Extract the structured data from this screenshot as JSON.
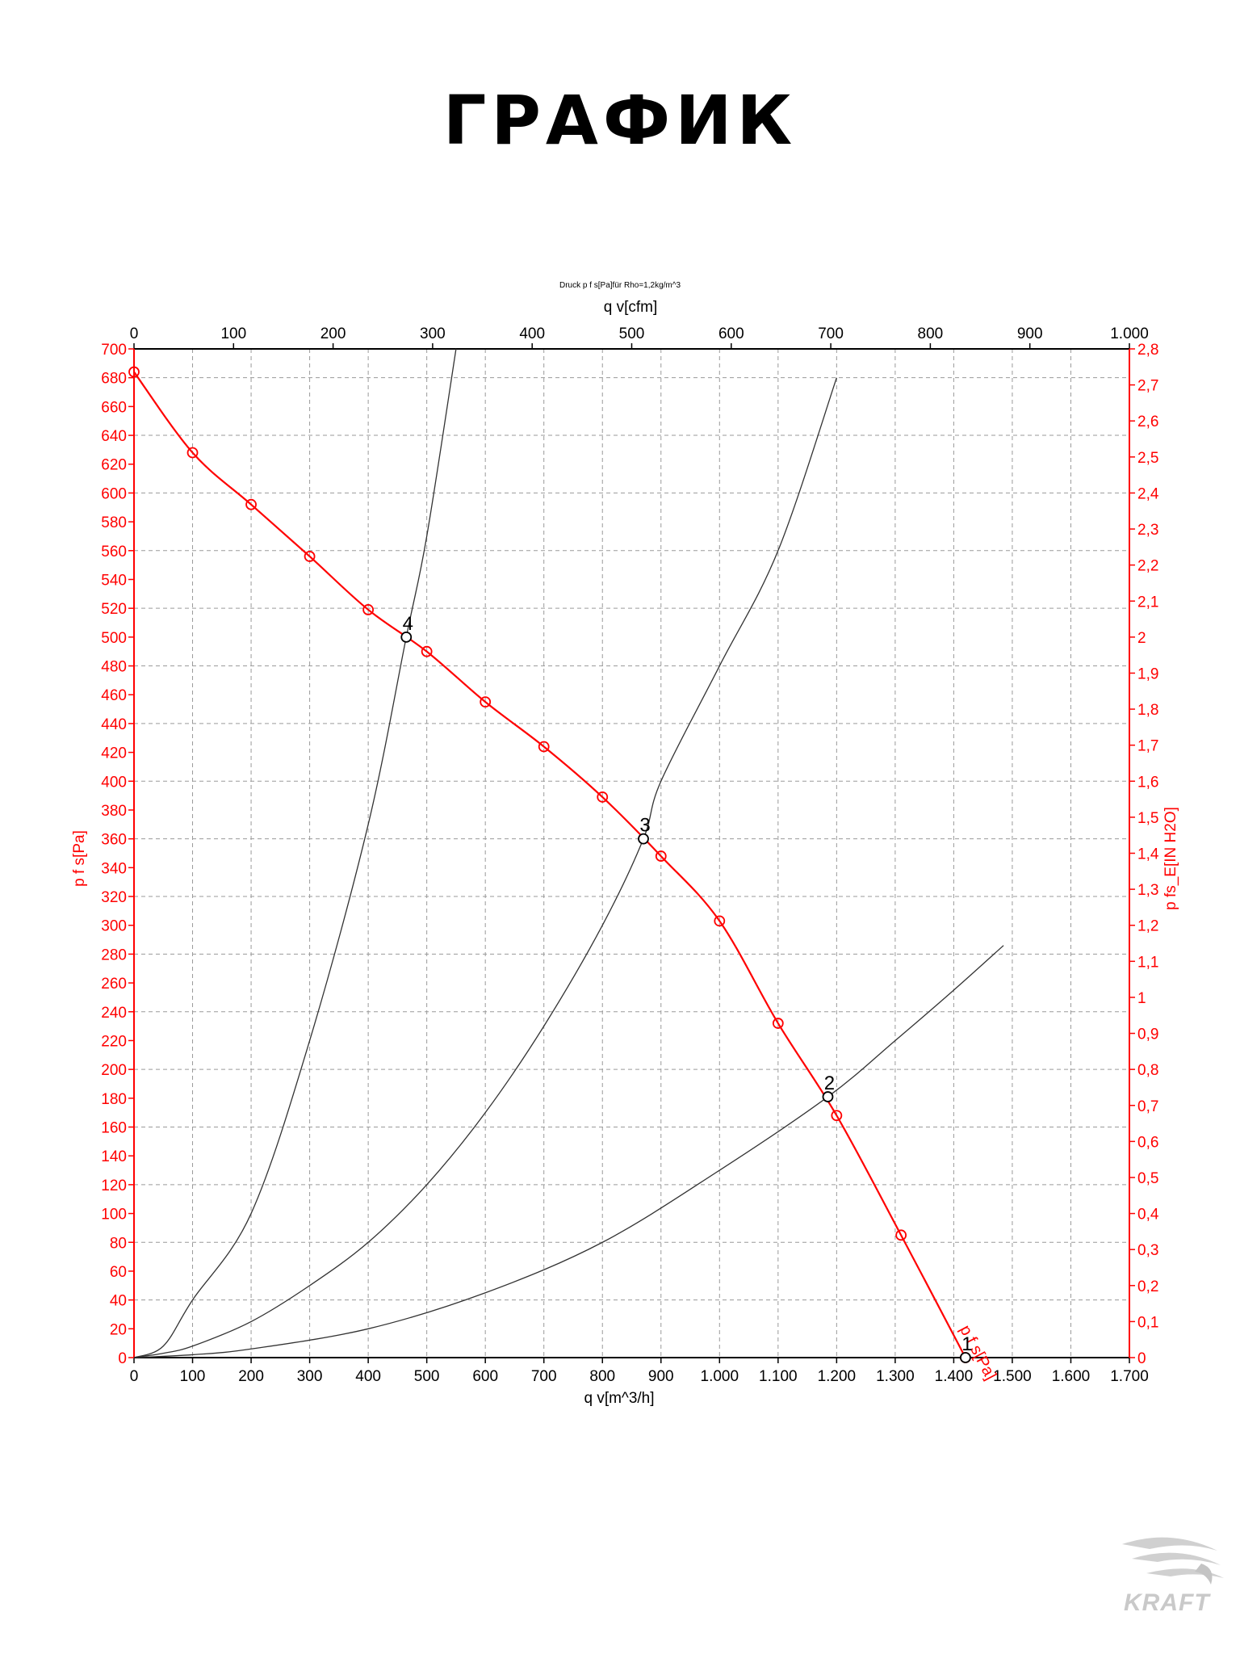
{
  "page": {
    "title": "ГРАФИК"
  },
  "logo": {
    "text": "KRAFT"
  },
  "chart_data": {
    "type": "line",
    "title": "Druck p f s[Pa]für Rho=1,2kg/m^3",
    "xlabel": "q v[m^3/h]",
    "x2label": "q v[cfm]",
    "ylabel": "p f s[Pa]",
    "y2label": "p fs_E[IN H2O]",
    "xlim": [
      0,
      1700
    ],
    "ylim": [
      0,
      700
    ],
    "x2lim": [
      0,
      1000
    ],
    "y2lim": [
      0,
      2.8
    ],
    "grid": true,
    "x_ticks": [
      0,
      100,
      200,
      300,
      400,
      500,
      600,
      700,
      800,
      900,
      1000,
      1100,
      1200,
      1300,
      1400,
      1500,
      1600,
      1700
    ],
    "x_tick_labels": [
      "0",
      "100",
      "200",
      "300",
      "400",
      "500",
      "600",
      "700",
      "800",
      "900",
      "1.000",
      "1.100",
      "1.200",
      "1.300",
      "1.400",
      "1.500",
      "1.600",
      "1.700"
    ],
    "x2_ticks": [
      0,
      100,
      200,
      300,
      400,
      500,
      600,
      700,
      800,
      900,
      1000
    ],
    "x2_tick_labels": [
      "0",
      "100",
      "200",
      "300",
      "400",
      "500",
      "600",
      "700",
      "800",
      "900",
      "1.000"
    ],
    "y_ticks": [
      0,
      20,
      40,
      60,
      80,
      100,
      120,
      140,
      160,
      180,
      200,
      220,
      240,
      260,
      280,
      300,
      320,
      340,
      360,
      380,
      400,
      420,
      440,
      460,
      480,
      500,
      520,
      540,
      560,
      580,
      600,
      620,
      640,
      660,
      680,
      700
    ],
    "y2_ticks": [
      0,
      0.1,
      0.2,
      0.3,
      0.4,
      0.5,
      0.6,
      0.7,
      0.8,
      0.9,
      1,
      1.1,
      1.2,
      1.3,
      1.4,
      1.5,
      1.6,
      1.7,
      1.8,
      1.9,
      2,
      2.1,
      2.2,
      2.3,
      2.4,
      2.5,
      2.6,
      2.7,
      2.8
    ],
    "y2_tick_labels": [
      "0",
      "0,1",
      "0,2",
      "0,3",
      "0,4",
      "0,5",
      "0,6",
      "0,7",
      "0,8",
      "0,9",
      "1",
      "1,1",
      "1,2",
      "1,3",
      "1,4",
      "1,5",
      "1,6",
      "1,7",
      "1,8",
      "1,9",
      "2",
      "2,1",
      "2,2",
      "2,3",
      "2,4",
      "2,5",
      "2,6",
      "2,7",
      "2,8"
    ],
    "fan_curve": {
      "name": "p f s[Pa]",
      "color": "#ff0000",
      "x": [
        0,
        100,
        200,
        300,
        400,
        500,
        600,
        700,
        800,
        900,
        1000,
        1100,
        1200,
        1310,
        1420
      ],
      "y": [
        684,
        628,
        592,
        556,
        519,
        490,
        455,
        424,
        389,
        348,
        303,
        232,
        168,
        85,
        0
      ]
    },
    "system_curves": [
      {
        "color": "#333333",
        "x": [
          0,
          50,
          100,
          200,
          300,
          400,
          465,
          500,
          550
        ],
        "y": [
          0,
          8,
          40,
          100,
          220,
          370,
          500,
          570,
          700
        ]
      },
      {
        "color": "#333333",
        "x": [
          0,
          50,
          100,
          200,
          300,
          400,
          500,
          600,
          700,
          800,
          870,
          900,
          1000,
          1100,
          1200
        ],
        "y": [
          0,
          3,
          8,
          25,
          50,
          80,
          120,
          170,
          230,
          300,
          360,
          400,
          480,
          560,
          680
        ]
      },
      {
        "color": "#333333",
        "x": [
          0,
          100,
          200,
          400,
          600,
          800,
          1000,
          1185,
          1300,
          1400,
          1485
        ],
        "y": [
          0,
          2,
          6,
          20,
          45,
          80,
          130,
          181,
          220,
          255,
          286
        ]
      }
    ],
    "operating_points": [
      {
        "label": "1",
        "x": 1420,
        "y": 0
      },
      {
        "label": "2",
        "x": 1185,
        "y": 181
      },
      {
        "label": "3",
        "x": 870,
        "y": 360
      },
      {
        "label": "4",
        "x": 465,
        "y": 500
      }
    ]
  }
}
